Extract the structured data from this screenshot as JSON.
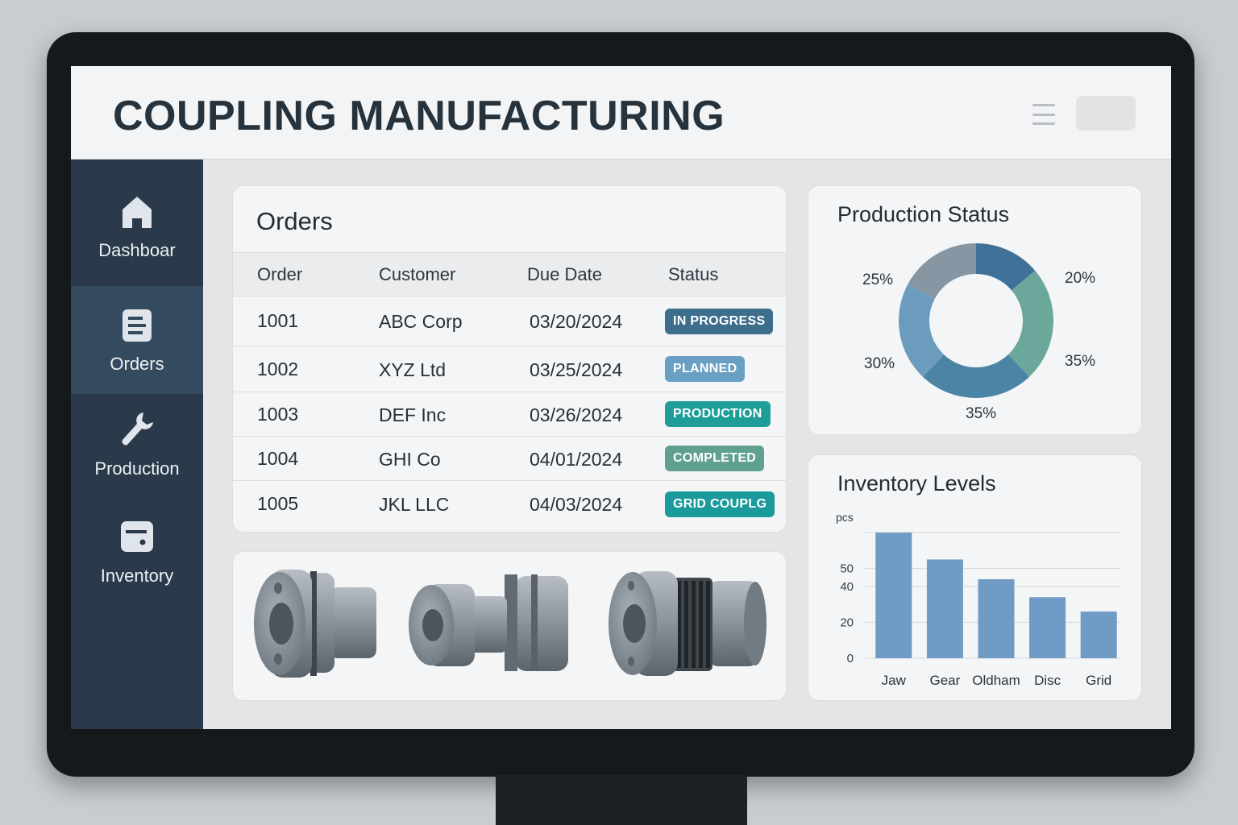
{
  "app": {
    "title": "COUPLING MANUFACTURING"
  },
  "sidebar": {
    "items": [
      {
        "label": "Dashboar",
        "icon": "home-icon",
        "active": false
      },
      {
        "label": "Orders",
        "icon": "document-icon",
        "active": true
      },
      {
        "label": "Production",
        "icon": "wrench-icon",
        "active": false
      },
      {
        "label": "Inventory",
        "icon": "box-icon",
        "active": false
      }
    ]
  },
  "orders": {
    "title": "Orders",
    "columns": [
      "Order",
      "Customer",
      "Due Date",
      "Status"
    ],
    "rows": [
      {
        "order": "1001",
        "customer": "ABC Corp",
        "due": "03/20/2024",
        "status": "IN PROGRESS",
        "status_color": "#3d6e8c"
      },
      {
        "order": "1002",
        "customer": "XYZ Ltd",
        "due": "03/25/2024",
        "status": "PLANNED",
        "status_color": "#6a9fc4"
      },
      {
        "order": "1003",
        "customer": "DEF Inc",
        "due": "03/26/2024",
        "status": "PRODUCTION",
        "status_color": "#1f9e99"
      },
      {
        "order": "1004",
        "customer": "GHI Co",
        "due": "04/01/2024",
        "status": "COMPLETED",
        "status_color": "#5fa08e"
      },
      {
        "order": "1005",
        "customer": "JKL LLC",
        "due": "04/03/2024",
        "status": "GRID COUPLG",
        "status_color": "#1a9a9a"
      }
    ]
  },
  "products": {
    "items": [
      "jaw-coupling-image",
      "oldham-coupling-image",
      "grid-coupling-image"
    ]
  },
  "production_status": {
    "title": "Production Status",
    "labels": [
      "20%",
      "35%",
      "35%",
      "30%",
      "25%"
    ]
  },
  "inventory": {
    "title": "Inventory Levels"
  },
  "chart_data": [
    {
      "type": "pie",
      "title": "Production Status",
      "slices": [
        {
          "label": "20%",
          "value": 20,
          "color": "#3f7199"
        },
        {
          "label": "35%",
          "value": 35,
          "color": "#6ba79a"
        },
        {
          "label": "35%",
          "value": 35,
          "color": "#4c84a6"
        },
        {
          "label": "30%",
          "value": 30,
          "color": "#6c9cbd"
        },
        {
          "label": "25%",
          "value": 25,
          "color": "#8796a3"
        }
      ],
      "donut": true
    },
    {
      "type": "bar",
      "title": "Inventory Levels",
      "categories": [
        "Jaw",
        "Gear",
        "Oldham",
        "Disc",
        "Grid"
      ],
      "values": [
        70,
        55,
        44,
        34,
        26
      ],
      "ylabel": "pcs",
      "yticks": [
        0,
        20,
        40,
        50
      ],
      "ylim": [
        0,
        70
      ],
      "color": "#6f9bc4",
      "grid": true
    }
  ]
}
